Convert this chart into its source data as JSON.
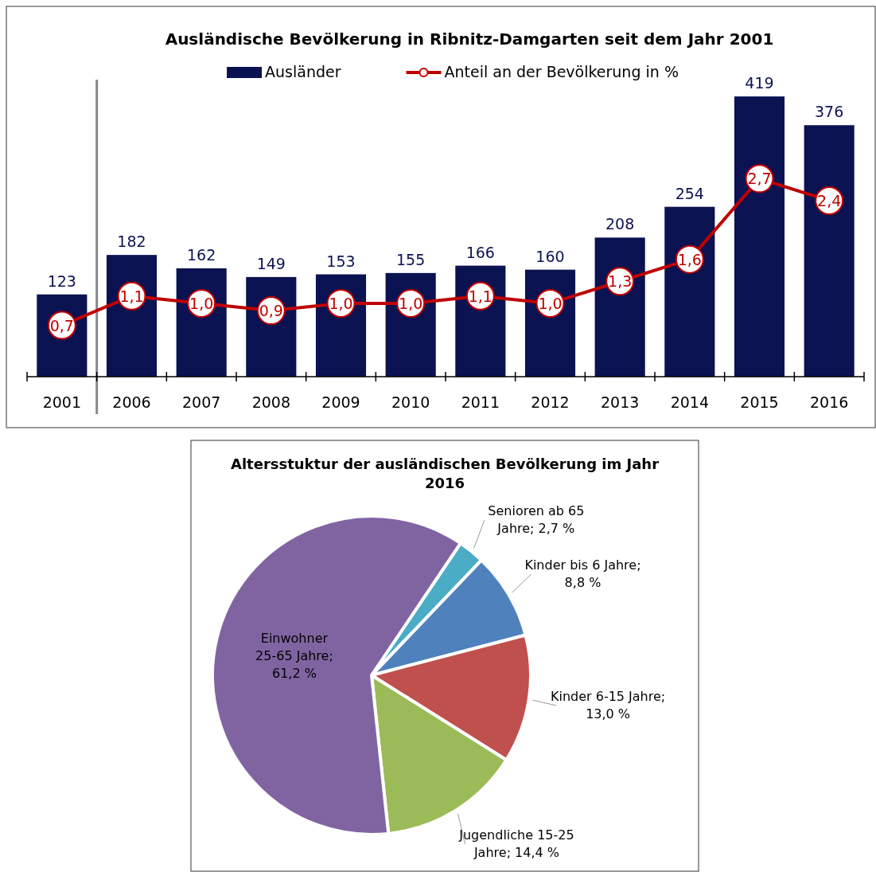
{
  "chart_data": [
    {
      "type": "bar",
      "title": "Ausländische Bevölkerung in Ribnitz-Damgarten seit dem Jahr 2001",
      "categories": [
        "2001",
        "2006",
        "2007",
        "2008",
        "2009",
        "2010",
        "2011",
        "2012",
        "2013",
        "2014",
        "2015",
        "2016"
      ],
      "legend": "top",
      "series": [
        {
          "type": "bar",
          "name": "Ausländer",
          "color": "#0b1252",
          "values": [
            123,
            182,
            162,
            149,
            153,
            155,
            166,
            160,
            208,
            254,
            419,
            376
          ],
          "value_labels": [
            "123",
            "182",
            "162",
            "149",
            "153",
            "155",
            "166",
            "160",
            "208",
            "254",
            "419",
            "376"
          ]
        },
        {
          "type": "line",
          "name": "Anteil an der Bevölkerung in %",
          "color": "#c00000",
          "axis": "y2",
          "marker": "circle",
          "values": [
            0.7,
            1.1,
            1.0,
            0.9,
            1.0,
            1.0,
            1.1,
            1.0,
            1.3,
            1.6,
            2.7,
            2.4
          ],
          "value_labels": [
            "0,7",
            "1,1",
            "1,0",
            "0,9",
            "1,0",
            "1,0",
            "1,1",
            "1,0",
            "1,3",
            "1,6",
            "2,7",
            "2,4"
          ]
        }
      ]
    },
    {
      "type": "pie",
      "title": "Altersstuktur der ausländischen Bevölkerung im Jahr 2016",
      "categories": [
        "Senioren ab 65 Jahre; 2,7 %",
        "Kinder bis 6 Jahre; 8,8 %",
        "Kinder 6-15 Jahre; 13,0 %",
        "Jugendliche 15-25 Jahre; 14,4 %",
        "Einwohner 25-65 Jahre; 61,2 %"
      ],
      "values": [
        2.7,
        8.8,
        13.0,
        14.4,
        61.2
      ],
      "colors": [
        "#4bacc6",
        "#4f81bd",
        "#c0504d",
        "#9bbb59",
        "#8064a2"
      ]
    }
  ]
}
